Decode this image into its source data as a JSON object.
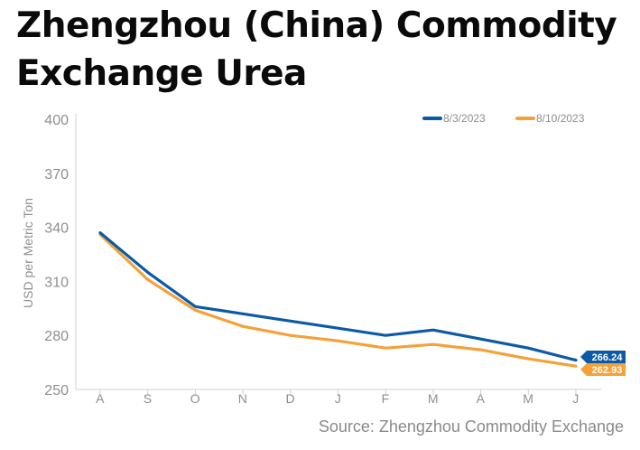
{
  "chart_data": {
    "type": "line",
    "title": "Zhengzhou (China) Commodity Exchange Urea",
    "source": "Source: Zhengzhou Commodity Exchange",
    "ylabel": "USD per Metric Ton",
    "xlabel": "",
    "ylim": [
      250,
      400
    ],
    "yticks": [
      250,
      280,
      310,
      340,
      370,
      400
    ],
    "categories": [
      "A",
      "S",
      "O",
      "N",
      "D",
      "J",
      "F",
      "M",
      "A",
      "M",
      "J"
    ],
    "grid": false,
    "legend_position": "top-right",
    "series": [
      {
        "name": "8/3/2023",
        "color": "#0b5aa5",
        "values": [
          337,
          315,
          296,
          292,
          288,
          284,
          280,
          283,
          278,
          273,
          266.24
        ],
        "end_label": "266.24"
      },
      {
        "name": "8/10/2023",
        "color": "#f4a13a",
        "values": [
          336,
          311,
          294,
          285,
          280,
          277,
          273,
          275,
          272,
          267,
          262.93
        ],
        "end_label": "262.93"
      }
    ]
  }
}
